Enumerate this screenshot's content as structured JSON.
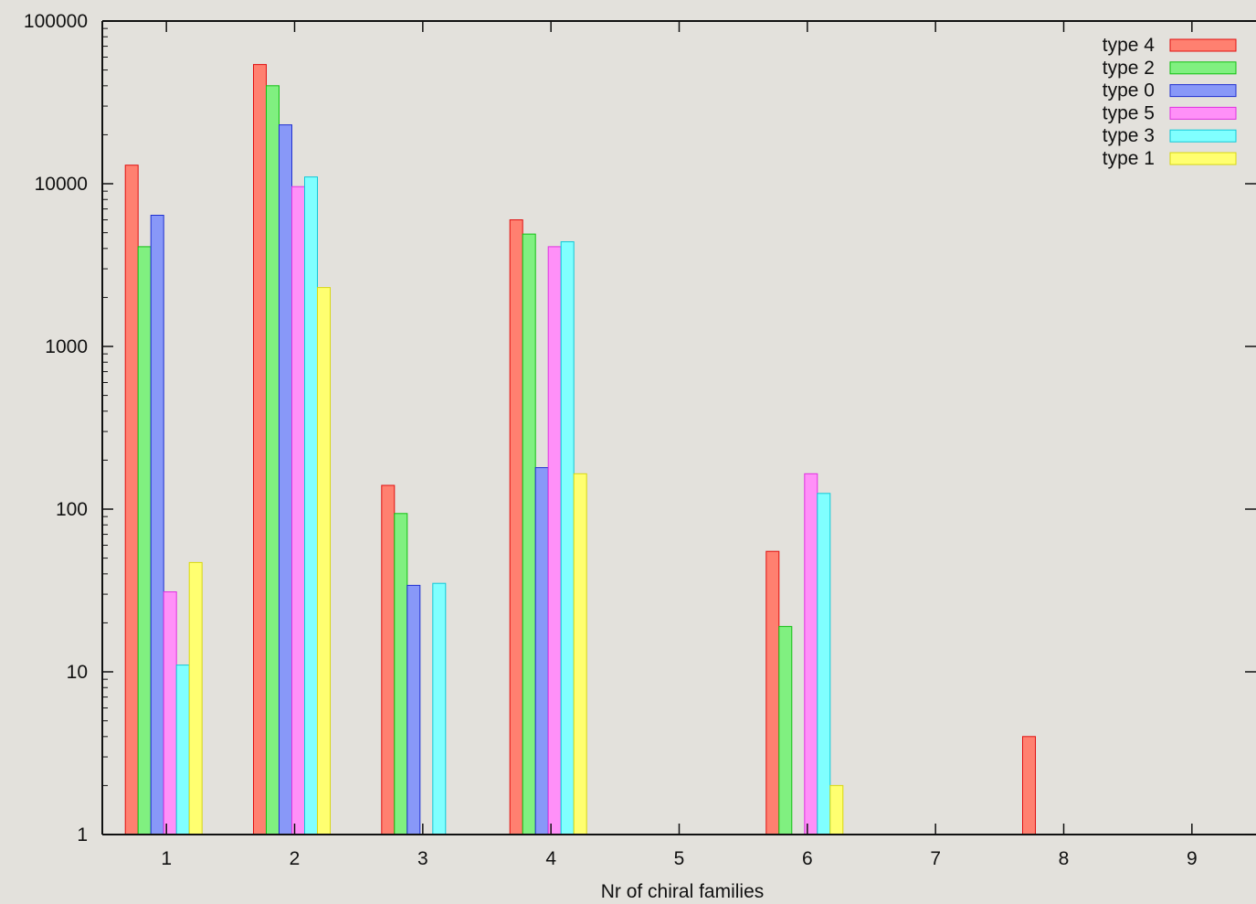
{
  "chart_data": {
    "type": "bar",
    "xlabel": "Nr of chiral families",
    "ylabel": "",
    "title": "",
    "y_scale": "log",
    "ylim": [
      1,
      100000
    ],
    "xlim": [
      0.5,
      9.5
    ],
    "y_tick_labels": [
      "1",
      "10",
      "100",
      "1000",
      "10000",
      "100000"
    ],
    "y_tick_values": [
      1,
      10,
      100,
      1000,
      10000,
      100000
    ],
    "categories": [
      "1",
      "2",
      "3",
      "4",
      "5",
      "6",
      "7",
      "8",
      "9"
    ],
    "grid": false,
    "legend_position": "top-right",
    "series": [
      {
        "name": "type 4",
        "color": "#ff8070",
        "stroke": "#e01010",
        "values": [
          13000,
          54000,
          140,
          6000,
          null,
          55,
          null,
          4,
          null
        ]
      },
      {
        "name": "type 2",
        "color": "#80f080",
        "stroke": "#10c010",
        "values": [
          4100,
          40000,
          94,
          4900,
          null,
          19,
          null,
          null,
          null
        ]
      },
      {
        "name": "type 0",
        "color": "#8898f8",
        "stroke": "#2030d0",
        "values": [
          6400,
          23000,
          34,
          180,
          null,
          null,
          null,
          null,
          null
        ]
      },
      {
        "name": "type 5",
        "color": "#ff90f8",
        "stroke": "#e030e0",
        "values": [
          31,
          9600,
          null,
          4100,
          null,
          165,
          null,
          null,
          null
        ]
      },
      {
        "name": "type 3",
        "color": "#80ffff",
        "stroke": "#10c8d8",
        "values": [
          11,
          11000,
          35,
          4400,
          null,
          125,
          null,
          null,
          null
        ]
      },
      {
        "name": "type 1",
        "color": "#ffff70",
        "stroke": "#d8d810",
        "values": [
          47,
          2300,
          null,
          165,
          null,
          2,
          null,
          null,
          null
        ]
      }
    ]
  }
}
